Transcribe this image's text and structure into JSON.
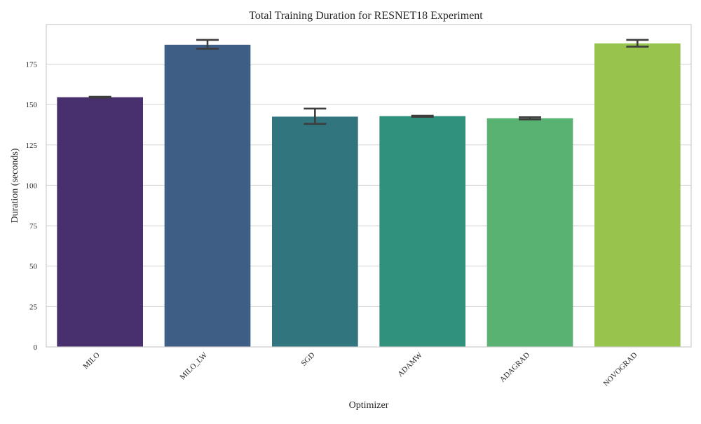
{
  "chart_data": {
    "type": "bar",
    "title": "Total Training Duration for RESNET18 Experiment",
    "xlabel": "Optimizer",
    "ylabel": "Duration (seconds)",
    "categories": [
      "MILO",
      "MILO_LW",
      "SGD",
      "ADAMW",
      "ADAGRAD",
      "NOVOGRAD"
    ],
    "values": [
      154.5,
      187.0,
      142.5,
      142.8,
      141.5,
      187.8
    ],
    "error_low": [
      154.3,
      184.5,
      138.0,
      142.4,
      140.8,
      185.8
    ],
    "error_high": [
      154.8,
      190.0,
      147.5,
      143.1,
      142.1,
      190.0
    ],
    "colors": [
      "#482f6e",
      "#3f5e85",
      "#31757f",
      "#30917d",
      "#59b272",
      "#98c44d"
    ],
    "ylim": [
      0,
      199.5
    ],
    "yticks": [
      0,
      25,
      50,
      75,
      100,
      125,
      150,
      175
    ],
    "grid": true,
    "legend": "none"
  }
}
